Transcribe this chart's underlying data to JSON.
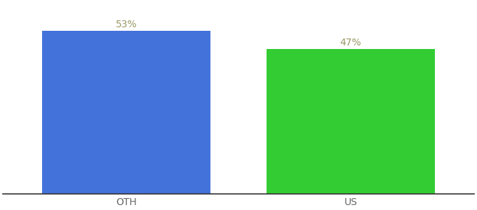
{
  "categories": [
    "OTH",
    "US"
  ],
  "values": [
    53,
    47
  ],
  "bar_colors": [
    "#4472db",
    "#33cc33"
  ],
  "label_format": [
    "53%",
    "47%"
  ],
  "ylim": [
    0,
    62
  ],
  "bar_width": 0.75,
  "background_color": "#ffffff",
  "label_color": "#999966",
  "tick_color": "#666666",
  "label_fontsize": 10,
  "tick_fontsize": 10
}
